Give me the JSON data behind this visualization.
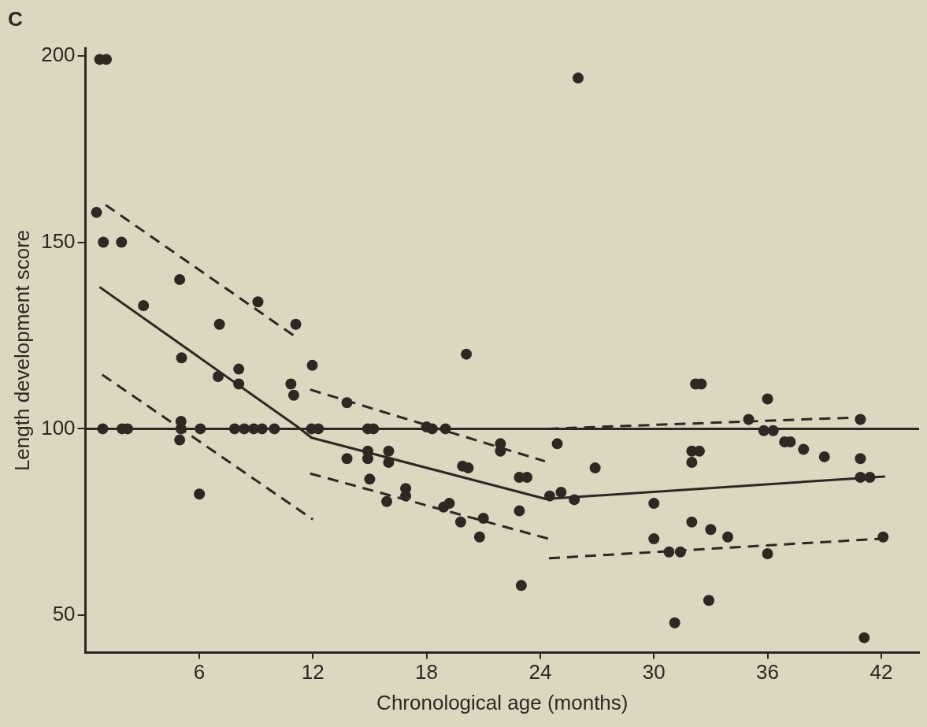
{
  "chart_data": {
    "type": "scatter",
    "title": "C",
    "xlabel": "Chronological age (months)",
    "ylabel": "Length development score",
    "xlim": [
      0,
      44
    ],
    "xticks": [
      6,
      12,
      18,
      24,
      30,
      36,
      42
    ],
    "ylim": [
      40,
      202
    ],
    "yticks": [
      50,
      100,
      150,
      200
    ],
    "grid": false,
    "legend": false,
    "ref_lines": [
      {
        "axis": "y",
        "value": 100,
        "color": "#2e2722",
        "line_style": "solid"
      }
    ],
    "series": [
      {
        "marker": "circle",
        "color": "#2e2722",
        "x": [
          0.75,
          1.1,
          0.58,
          0.94,
          1.9,
          4.97,
          3.06,
          9.1,
          11.1,
          7.07,
          5.07,
          8.09,
          11.97,
          7.0,
          8.09,
          10.84,
          10.99,
          13.8,
          0.91,
          1.93,
          2.22,
          5.04,
          6.06,
          7.87,
          8.38,
          8.88,
          9.32,
          9.97,
          11.93,
          12.29,
          5.04,
          4.97,
          13.8,
          6.01,
          14.9,
          15.2,
          18.0,
          18.3,
          19.0,
          14.9,
          14.9,
          16.0,
          16.0,
          15.0,
          15.9,
          16.9,
          16.9,
          19.9,
          20.2,
          21.9,
          21.9,
          24.9,
          22.9,
          23.3,
          18.9,
          19.2,
          19.8,
          21.0,
          20.8,
          22.9,
          23.0,
          20.1,
          24.5,
          25.1,
          25.8,
          26.9,
          32.2,
          32.5,
          36.0,
          35.0,
          40.9,
          35.8,
          36.3,
          36.9,
          37.2,
          37.9,
          39.0,
          40.9,
          32.0,
          32.4,
          32.0,
          40.9,
          41.4,
          30.0,
          32.0,
          33.0,
          33.9,
          30.0,
          30.8,
          31.4,
          36.0,
          42.1,
          32.9,
          31.1,
          41.1,
          26.0
        ],
        "values": [
          199,
          199,
          158,
          150,
          150,
          140,
          133,
          134,
          128,
          128,
          119,
          116,
          117,
          114,
          112,
          112,
          109,
          107,
          100,
          100,
          100,
          100,
          100,
          100,
          100,
          100,
          100,
          100,
          100,
          100,
          102,
          97,
          92,
          82.5,
          100,
          100,
          100.5,
          100,
          100,
          94,
          92,
          94,
          91,
          86.5,
          80.5,
          84,
          82,
          90,
          89.5,
          96,
          94,
          96,
          87,
          87,
          79,
          80,
          75,
          76,
          71,
          78,
          58,
          120,
          82,
          83,
          81,
          89.5,
          112,
          112,
          108,
          102.5,
          102.5,
          99.5,
          99.5,
          96.5,
          96.5,
          94.5,
          92.5,
          92,
          94,
          94,
          91,
          87,
          87,
          80,
          75,
          73,
          71,
          70.5,
          67,
          67,
          66.5,
          71,
          54,
          48,
          44,
          194
        ]
      },
      {
        "type": "line",
        "marker": "none",
        "line_style": "solid",
        "color": "#2e2722",
        "x": [
          0.74,
          11.2,
          11.93,
          24.3,
          42.2
        ],
        "values": [
          138,
          100.5,
          97.6,
          81.2,
          87.2
        ]
      },
      {
        "type": "line",
        "marker": "none",
        "line_style": "dashed",
        "color": "#2e2722",
        "x": [
          1.06,
          11.13
        ],
        "values": [
          160,
          124.5
        ]
      },
      {
        "type": "line",
        "marker": "none",
        "line_style": "dashed",
        "color": "#2e2722",
        "x": [
          0.88,
          12.0
        ],
        "values": [
          114.5,
          75.7
        ]
      },
      {
        "type": "line",
        "marker": "none",
        "line_style": "dashed",
        "color": "#2e2722",
        "x": [
          11.86,
          24.25
        ],
        "values": [
          110.5,
          91.3
        ]
      },
      {
        "type": "line",
        "marker": "none",
        "line_style": "dashed",
        "color": "#2e2722",
        "x": [
          11.86,
          24.6
        ],
        "values": [
          88,
          70.3
        ]
      },
      {
        "type": "line",
        "marker": "none",
        "line_style": "dashed",
        "color": "#2e2722",
        "x": [
          24.4,
          41.1
        ],
        "values": [
          100,
          103.1
        ]
      },
      {
        "type": "line",
        "marker": "none",
        "line_style": "dashed",
        "color": "#2e2722",
        "x": [
          24.46,
          42.2
        ],
        "values": [
          65.3,
          70.6
        ]
      }
    ]
  }
}
